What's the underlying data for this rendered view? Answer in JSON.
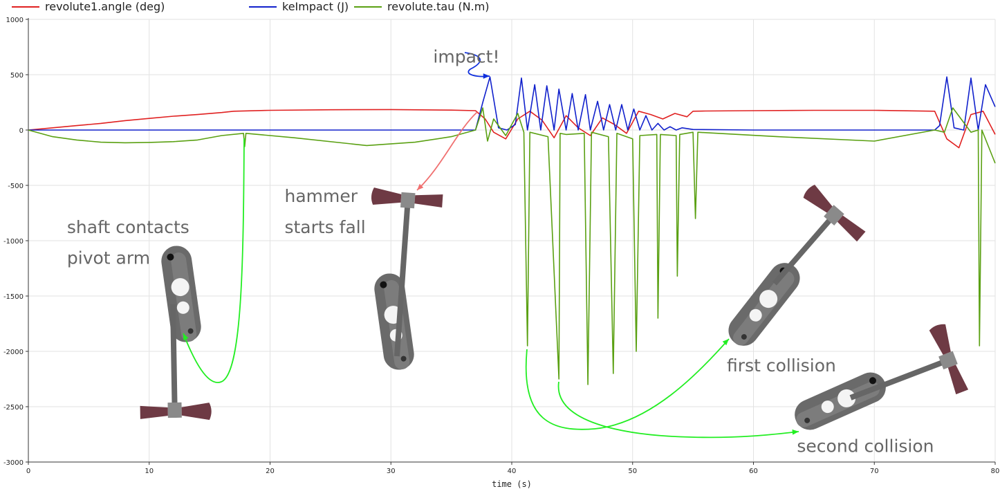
{
  "chart_data": {
    "type": "line",
    "title": "",
    "xlabel": "time (s)",
    "ylabel": "",
    "xlim": [
      0,
      80
    ],
    "ylim": [
      -3000,
      1000
    ],
    "xticks": [
      0,
      10,
      20,
      30,
      40,
      50,
      60,
      70,
      80
    ],
    "yticks": [
      1000,
      500,
      0,
      -500,
      -1000,
      -1500,
      -2000,
      -2500,
      -3000
    ],
    "grid": true,
    "legend_position": "top-left",
    "series": [
      {
        "name": "revolute1.angle (deg)",
        "color": "#e02020",
        "x": [
          0,
          2,
          4,
          6,
          8,
          10,
          12,
          14,
          16,
          17,
          20,
          25,
          30,
          35,
          37,
          37.8,
          38.5,
          39.5,
          40.5,
          41.5,
          42.5,
          43.5,
          44.5,
          45.5,
          46.5,
          47.5,
          48.5,
          49.5,
          50.5,
          51.5,
          52.5,
          53.5,
          54.5,
          55,
          56,
          60,
          65,
          70,
          75,
          76,
          77,
          78,
          79,
          80
        ],
        "values": [
          0,
          20,
          40,
          60,
          85,
          105,
          125,
          140,
          158,
          170,
          178,
          183,
          185,
          180,
          175,
          100,
          -20,
          -80,
          100,
          170,
          90,
          -70,
          130,
          20,
          -50,
          110,
          50,
          -30,
          170,
          140,
          100,
          150,
          120,
          170,
          172,
          175,
          178,
          178,
          170,
          -80,
          -160,
          140,
          170,
          -40
        ]
      },
      {
        "name": "keImpact (J)",
        "color": "#1020cc",
        "x": [
          0,
          10,
          20,
          30,
          37,
          37.6,
          38.2,
          38.9,
          39.6,
          40.3,
          40.8,
          41.3,
          41.9,
          42.4,
          42.9,
          43.5,
          43.9,
          44.5,
          45.0,
          45.5,
          46.1,
          46.5,
          47.1,
          47.6,
          48.1,
          48.6,
          49.1,
          49.6,
          50.1,
          50.6,
          51.1,
          51.6,
          52.1,
          52.6,
          53.1,
          53.6,
          54.1,
          55,
          60,
          70,
          75,
          75.4,
          76.0,
          76.6,
          77.4,
          78.0,
          78.6,
          79.2,
          80
        ],
        "values": [
          0,
          0,
          0,
          0,
          0,
          250,
          480,
          20,
          0,
          50,
          470,
          0,
          410,
          0,
          400,
          0,
          370,
          0,
          330,
          0,
          320,
          0,
          260,
          0,
          230,
          0,
          230,
          0,
          190,
          0,
          130,
          0,
          60,
          0,
          30,
          0,
          20,
          5,
          0,
          0,
          0,
          40,
          480,
          20,
          0,
          470,
          0,
          410,
          210
        ]
      },
      {
        "name": "revolute.tau (N.m)",
        "color": "#5aa012",
        "x": [
          0,
          2,
          4,
          6,
          8,
          10,
          12,
          14,
          16,
          17.8,
          17.9,
          18.0,
          22,
          28,
          32,
          35,
          37,
          37.6,
          38.0,
          38.5,
          39.5,
          40.5,
          41.0,
          41.3,
          41.5,
          43.0,
          43.9,
          44.0,
          44.5,
          46.0,
          46.3,
          46.6,
          48.0,
          48.4,
          48.7,
          50.0,
          50.3,
          50.6,
          52.0,
          52.1,
          52.3,
          53.6,
          53.7,
          53.9,
          55.0,
          55.2,
          55.4,
          62,
          70,
          75,
          75.8,
          76.5,
          78.0,
          78.6,
          78.7,
          78.9,
          80
        ],
        "values": [
          0,
          -60,
          -90,
          -110,
          -115,
          -112,
          -105,
          -90,
          -50,
          -30,
          -150,
          -30,
          -70,
          -140,
          -110,
          -60,
          0,
          200,
          -100,
          100,
          -50,
          150,
          -20,
          -1950,
          -20,
          -60,
          -2250,
          -30,
          -40,
          -30,
          -2300,
          -20,
          -60,
          -2200,
          -30,
          -80,
          -2000,
          -50,
          -40,
          -1700,
          -40,
          -50,
          -1320,
          -40,
          -20,
          -800,
          -20,
          -60,
          -100,
          0,
          -20,
          200,
          -20,
          0,
          -1950,
          0,
          -300
        ]
      }
    ],
    "annotations": [
      {
        "text": "impact!",
        "x": 33.5,
        "y": 610
      },
      {
        "text": "hammer",
        "x": 21.2,
        "y": -650
      },
      {
        "text": "starts fall",
        "x": 21.2,
        "y": -930
      },
      {
        "text": "shaft contacts",
        "x": 3.2,
        "y": -930
      },
      {
        "text": "pivot arm",
        "x": 3.2,
        "y": -1210
      },
      {
        "text": "first collision",
        "x": 57.8,
        "y": -2180
      },
      {
        "text": "second collision",
        "x": 63.6,
        "y": -2910
      }
    ]
  },
  "colors": {
    "axis": "#333333",
    "grid": "#e2e2e2",
    "arrow_green": "#22ee22",
    "arrow_red": "#f07070",
    "arrow_blue": "#1030dd",
    "hammer_head": "#6e3a44",
    "hammer_metal": "#666666"
  }
}
